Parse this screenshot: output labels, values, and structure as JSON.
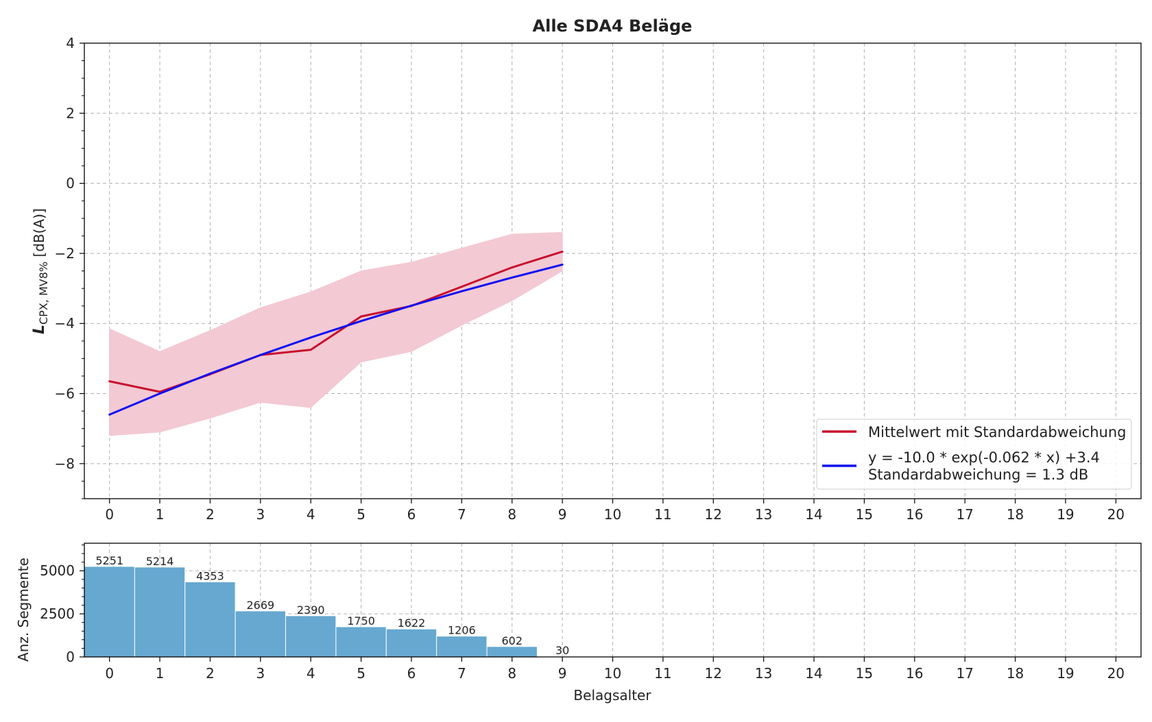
{
  "chart_data": [
    {
      "type": "line",
      "title": "Alle SDA4 Beläge",
      "xlabel": "",
      "ylabel": "L",
      "ylabel_sub": "CPX, MV8%",
      "ylabel_unit": " [dB(A)]",
      "xlim": [
        -0.5,
        20.5
      ],
      "ylim": [
        -9,
        4
      ],
      "xticks": [
        0,
        1,
        2,
        3,
        4,
        5,
        6,
        7,
        8,
        9,
        10,
        11,
        12,
        13,
        14,
        15,
        16,
        17,
        18,
        19,
        20
      ],
      "yticks": [
        -8,
        -6,
        -4,
        -2,
        0,
        2,
        4
      ],
      "grid": true,
      "series": [
        {
          "name": "Mittelwert mit Standardabweichung",
          "color": "#c8102e",
          "x": [
            0,
            1,
            2,
            3,
            4,
            5,
            6,
            7,
            8,
            9
          ],
          "values": [
            -5.65,
            -5.95,
            -5.45,
            -4.9,
            -4.75,
            -3.8,
            -3.5,
            -2.95,
            -2.4,
            -1.95
          ],
          "band_upper": [
            -4.15,
            -4.8,
            -4.2,
            -3.55,
            -3.1,
            -2.5,
            -2.25,
            -1.85,
            -1.45,
            -1.4
          ],
          "band_lower": [
            -7.2,
            -7.1,
            -6.7,
            -6.25,
            -6.4,
            -5.1,
            -4.8,
            -4.05,
            -3.35,
            -2.5
          ],
          "band_color": "#f3c9d3"
        },
        {
          "name": "y = -10.0 * exp(-0.062 * x) +3.4",
          "name_line2": "Standardabweichung = 1.3 dB",
          "color": "#1010f0",
          "x": [
            0,
            1,
            2,
            3,
            4,
            5,
            6,
            7,
            8,
            9
          ],
          "values": [
            -6.6,
            -6.0,
            -5.43,
            -4.9,
            -4.4,
            -3.93,
            -3.49,
            -3.08,
            -2.69,
            -2.32
          ]
        }
      ],
      "legend": "lower-right"
    },
    {
      "type": "bar",
      "xlabel": "Belagsalter",
      "ylabel": "Anz. Segmente",
      "xlim": [
        -0.5,
        20.5
      ],
      "ylim": [
        0,
        6600
      ],
      "xticks": [
        0,
        1,
        2,
        3,
        4,
        5,
        6,
        7,
        8,
        9,
        10,
        11,
        12,
        13,
        14,
        15,
        16,
        17,
        18,
        19,
        20
      ],
      "yticks": [
        0,
        2500,
        5000
      ],
      "grid": true,
      "color": "#66a8d0",
      "categories": [
        0,
        1,
        2,
        3,
        4,
        5,
        6,
        7,
        8,
        9
      ],
      "values": [
        5251,
        5214,
        4353,
        2669,
        2390,
        1750,
        1622,
        1206,
        602,
        30
      ]
    }
  ]
}
